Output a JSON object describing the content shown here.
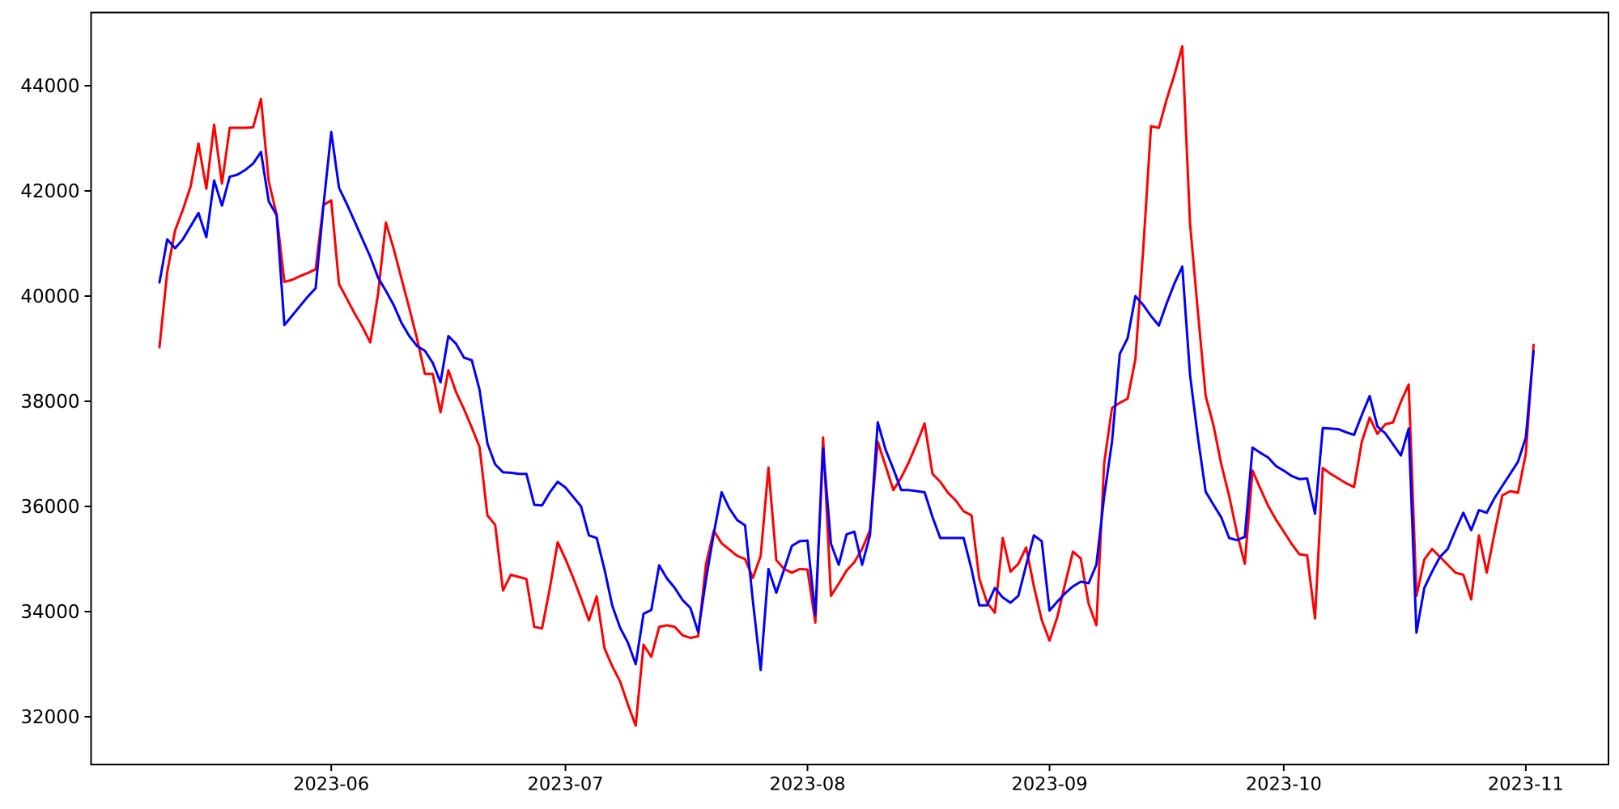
{
  "figure": {
    "background_color": "#ffffff",
    "spine_color": "#000000",
    "tick_color": "#000000"
  },
  "chart_data": {
    "type": "line",
    "title": "",
    "xlabel": "",
    "ylabel": "",
    "grid": false,
    "legend": "none",
    "x_start_date": "2023-05-10",
    "x_end_date": "2023-11-02",
    "points_per_series": 177,
    "x_tick_labels": [
      "2023-06",
      "2023-07",
      "2023-08",
      "2023-09",
      "2023-10",
      "2023-11"
    ],
    "x_tick_day_indices": [
      22,
      52,
      83,
      114,
      144,
      175
    ],
    "y_tick_labels": [
      "32000",
      "34000",
      "36000",
      "38000",
      "40000",
      "42000",
      "44000"
    ],
    "y_tick_values": [
      32000,
      34000,
      36000,
      38000,
      40000,
      42000,
      44000
    ],
    "ylim": [
      31200,
      45400
    ],
    "series": [
      {
        "name": "red-series",
        "color": "#ff0000",
        "values": [
          39030,
          40460,
          41250,
          41640,
          42090,
          42900,
          42040,
          43260,
          42140,
          43200,
          43200,
          43200,
          43210,
          43750,
          42180,
          41550,
          40270,
          40310,
          40380,
          40440,
          40510,
          41730,
          41820,
          40230,
          39950,
          39670,
          39410,
          39120,
          40050,
          41400,
          40900,
          40330,
          39770,
          39180,
          38520,
          38520,
          37790,
          38590,
          38170,
          37850,
          37500,
          37130,
          35830,
          35650,
          34400,
          34700,
          34660,
          34620,
          33710,
          33680,
          34450,
          35320,
          35000,
          34640,
          34250,
          33830,
          34290,
          33300,
          32960,
          32670,
          32230,
          31830,
          33370,
          33140,
          33710,
          33740,
          33710,
          33550,
          33500,
          33530,
          34900,
          35540,
          35300,
          35180,
          35060,
          35000,
          34640,
          35060,
          36740,
          34980,
          34810,
          34740,
          34810,
          34800,
          33790,
          37310,
          34300,
          34530,
          34780,
          34940,
          35190,
          35550,
          37230,
          36770,
          36310,
          36550,
          36850,
          37200,
          37580,
          36620,
          36470,
          36260,
          36110,
          35910,
          35830,
          34630,
          34170,
          33980,
          35400,
          34760,
          34910,
          35220,
          34480,
          33840,
          33450,
          33900,
          34530,
          35140,
          35010,
          34150,
          33740,
          36820,
          37870,
          37970,
          38050,
          38800,
          40900,
          43230,
          43200,
          43740,
          44210,
          44750,
          41380,
          39700,
          38100,
          37540,
          36800,
          36200,
          35500,
          34910,
          36680,
          36340,
          36010,
          35750,
          35520,
          35290,
          35090,
          35070,
          33870,
          36730,
          36620,
          36530,
          36440,
          36370,
          37230,
          37690,
          37380,
          37560,
          37600,
          37990,
          38320,
          34300,
          34990,
          35190,
          35040,
          34890,
          34740,
          34700,
          34230,
          35450,
          34740,
          35500,
          36210,
          36290,
          36260,
          37000,
          39070
        ]
      },
      {
        "name": "blue-series",
        "color": "#0000ff",
        "values": [
          40260,
          41080,
          40910,
          41080,
          41330,
          41580,
          41120,
          42200,
          41720,
          42270,
          42310,
          42400,
          42520,
          42740,
          41800,
          41540,
          39450,
          39630,
          39810,
          39990,
          40150,
          41710,
          43120,
          42060,
          41750,
          41420,
          41080,
          40750,
          40350,
          40100,
          39830,
          39490,
          39240,
          39050,
          38960,
          38730,
          38360,
          39240,
          39090,
          38830,
          38780,
          38220,
          37200,
          36800,
          36650,
          36640,
          36620,
          36620,
          36030,
          36020,
          36270,
          36470,
          36360,
          36180,
          36000,
          35450,
          35400,
          34800,
          34110,
          33690,
          33410,
          33000,
          33960,
          34030,
          34880,
          34630,
          34450,
          34220,
          34070,
          33610,
          34610,
          35490,
          36270,
          35960,
          35740,
          35640,
          34210,
          32890,
          34810,
          34360,
          34800,
          35250,
          35340,
          35350,
          33930,
          37100,
          35290,
          34890,
          35470,
          35520,
          34890,
          35450,
          37600,
          37080,
          36710,
          36310,
          36310,
          36290,
          36270,
          35800,
          35400,
          35400,
          35400,
          35400,
          34810,
          34120,
          34120,
          34450,
          34270,
          34170,
          34300,
          34880,
          35450,
          35340,
          34020,
          34190,
          34350,
          34480,
          34570,
          34540,
          34890,
          36190,
          37230,
          38900,
          39200,
          40000,
          39830,
          39620,
          39440,
          39860,
          40240,
          40560,
          38500,
          37310,
          36280,
          36030,
          35790,
          35400,
          35360,
          35420,
          37120,
          37020,
          36930,
          36770,
          36680,
          36580,
          36520,
          36530,
          35860,
          37490,
          37480,
          37470,
          37410,
          37360,
          37740,
          38100,
          37520,
          37390,
          37180,
          36970,
          37480,
          33600,
          34450,
          34760,
          35040,
          35190,
          35550,
          35880,
          35550,
          35930,
          35880,
          36160,
          36390,
          36620,
          36850,
          37310,
          38950
        ]
      }
    ]
  }
}
